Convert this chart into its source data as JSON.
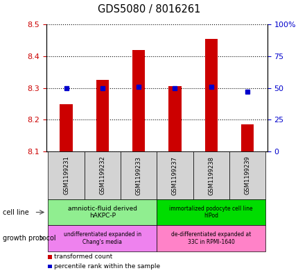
{
  "title": "GDS5080 / 8016261",
  "samples": [
    "GSM1199231",
    "GSM1199232",
    "GSM1199233",
    "GSM1199237",
    "GSM1199238",
    "GSM1199239"
  ],
  "transformed_counts": [
    8.25,
    8.325,
    8.42,
    8.305,
    8.455,
    8.185
  ],
  "percentile_ranks": [
    50,
    50,
    51,
    50,
    51,
    47
  ],
  "ylim_left": [
    8.1,
    8.5
  ],
  "ylim_right": [
    0,
    100
  ],
  "yticks_left": [
    8.1,
    8.2,
    8.3,
    8.4,
    8.5
  ],
  "yticks_right": [
    0,
    25,
    50,
    75,
    100
  ],
  "bar_color": "#cc0000",
  "dot_color": "#0000cc",
  "bar_base": 8.1,
  "cell_line_g1_label": "amniotic-fluid derived\nhAKPC-P",
  "cell_line_g2_label": "immortalized podocyte cell line\nhIPod",
  "cell_line_g1_color": "#90ee90",
  "cell_line_g2_color": "#00dd00",
  "growth_g1_label": "undifferentiated expanded in\nChang's media",
  "growth_g2_label": "de-differentiated expanded at\n33C in RPMI-1640",
  "growth_g1_color": "#ee82ee",
  "growth_g2_color": "#ff82c8",
  "cell_line_row_label": "cell line",
  "growth_row_label": "growth protocol",
  "legend_bar_label": "transformed count",
  "legend_dot_label": "percentile rank within the sample",
  "background_color": "#ffffff",
  "tick_color_left": "#cc0000",
  "tick_color_right": "#0000cc",
  "sample_cell_color": "#d3d3d3",
  "x_positions": [
    0,
    1,
    2,
    3,
    4,
    5
  ],
  "x_lim": [
    -0.55,
    5.55
  ]
}
